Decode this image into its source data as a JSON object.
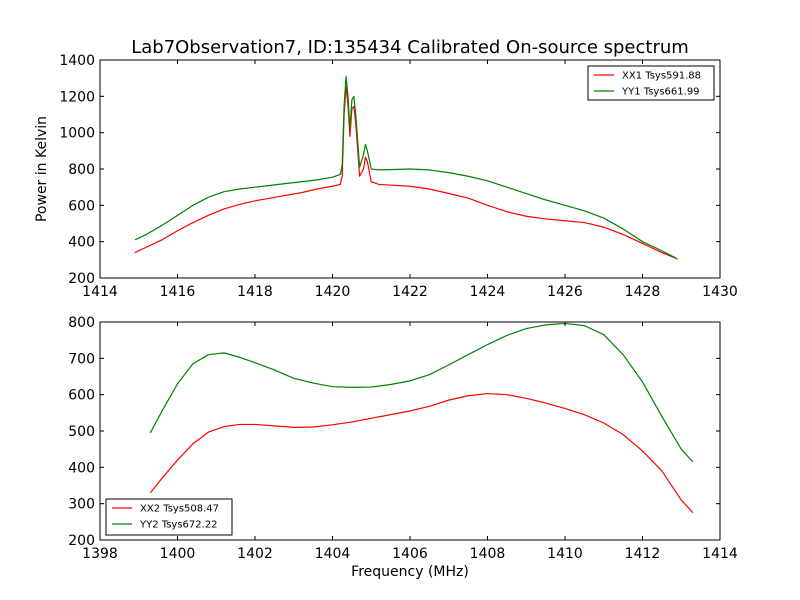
{
  "chart_data": [
    {
      "type": "line",
      "title": "Lab7Observation7, ID:135434 Calibrated On-source spectrum",
      "xlabel": "",
      "ylabel": "Power in Kelvin",
      "xlim": [
        1414,
        1430
      ],
      "ylim": [
        200,
        1400
      ],
      "xticks": [
        "1414",
        "1416",
        "1418",
        "1420",
        "1422",
        "1424",
        "1426",
        "1428",
        "1430"
      ],
      "yticks": [
        "200",
        "400",
        "600",
        "800",
        "1000",
        "1200",
        "1400"
      ],
      "legend_position": "top-right",
      "grid": false,
      "series": [
        {
          "name": "XX1 Tsys591.88",
          "color": "#ff0000",
          "points": [
            [
              1414.9,
              340
            ],
            [
              1415.2,
              370
            ],
            [
              1415.6,
              410
            ],
            [
              1416.0,
              460
            ],
            [
              1416.4,
              505
            ],
            [
              1416.8,
              545
            ],
            [
              1417.2,
              580
            ],
            [
              1417.6,
              605
            ],
            [
              1418.0,
              625
            ],
            [
              1418.4,
              640
            ],
            [
              1418.8,
              655
            ],
            [
              1419.2,
              670
            ],
            [
              1419.6,
              690
            ],
            [
              1420.0,
              705
            ],
            [
              1420.2,
              715
            ],
            [
              1420.25,
              760
            ],
            [
              1420.3,
              1100
            ],
            [
              1420.35,
              1255
            ],
            [
              1420.4,
              1150
            ],
            [
              1420.45,
              980
            ],
            [
              1420.5,
              1130
            ],
            [
              1420.55,
              1145
            ],
            [
              1420.6,
              1050
            ],
            [
              1420.7,
              760
            ],
            [
              1420.8,
              800
            ],
            [
              1420.85,
              865
            ],
            [
              1420.9,
              840
            ],
            [
              1421.0,
              730
            ],
            [
              1421.2,
              715
            ],
            [
              1422.0,
              705
            ],
            [
              1422.5,
              690
            ],
            [
              1423.0,
              665
            ],
            [
              1423.5,
              640
            ],
            [
              1424.0,
              600
            ],
            [
              1424.5,
              565
            ],
            [
              1425.0,
              540
            ],
            [
              1425.5,
              525
            ],
            [
              1426.0,
              515
            ],
            [
              1426.5,
              505
            ],
            [
              1427.0,
              480
            ],
            [
              1427.5,
              440
            ],
            [
              1428.0,
              390
            ],
            [
              1428.5,
              340
            ],
            [
              1428.9,
              305
            ]
          ]
        },
        {
          "name": "YY1 Tsys661.99",
          "color": "#008000",
          "points": [
            [
              1414.9,
              410
            ],
            [
              1415.2,
              440
            ],
            [
              1415.6,
              490
            ],
            [
              1416.0,
              545
            ],
            [
              1416.4,
              600
            ],
            [
              1416.8,
              645
            ],
            [
              1417.2,
              675
            ],
            [
              1417.6,
              690
            ],
            [
              1418.0,
              700
            ],
            [
              1418.4,
              710
            ],
            [
              1418.8,
              720
            ],
            [
              1419.2,
              730
            ],
            [
              1419.6,
              740
            ],
            [
              1420.0,
              755
            ],
            [
              1420.2,
              770
            ],
            [
              1420.25,
              820
            ],
            [
              1420.3,
              1150
            ],
            [
              1420.35,
              1310
            ],
            [
              1420.4,
              1200
            ],
            [
              1420.45,
              1020
            ],
            [
              1420.5,
              1180
            ],
            [
              1420.55,
              1200
            ],
            [
              1420.6,
              1100
            ],
            [
              1420.7,
              810
            ],
            [
              1420.8,
              880
            ],
            [
              1420.85,
              935
            ],
            [
              1420.9,
              900
            ],
            [
              1421.0,
              800
            ],
            [
              1421.2,
              795
            ],
            [
              1422.0,
              800
            ],
            [
              1422.5,
              795
            ],
            [
              1423.0,
              780
            ],
            [
              1423.5,
              760
            ],
            [
              1424.0,
              735
            ],
            [
              1424.5,
              700
            ],
            [
              1425.0,
              665
            ],
            [
              1425.5,
              630
            ],
            [
              1426.0,
              600
            ],
            [
              1426.5,
              570
            ],
            [
              1427.0,
              530
            ],
            [
              1427.5,
              470
            ],
            [
              1428.0,
              400
            ],
            [
              1428.5,
              350
            ],
            [
              1428.9,
              305
            ]
          ]
        }
      ]
    },
    {
      "type": "line",
      "title": "",
      "xlabel": "Frequency (MHz)",
      "ylabel": "",
      "xlim": [
        1398,
        1414
      ],
      "ylim": [
        200,
        800
      ],
      "xticks": [
        "1398",
        "1400",
        "1402",
        "1404",
        "1406",
        "1408",
        "1410",
        "1412",
        "1414"
      ],
      "yticks": [
        "200",
        "300",
        "400",
        "500",
        "600",
        "700",
        "800"
      ],
      "legend_position": "bottom-left",
      "grid": false,
      "series": [
        {
          "name": "XX2 Tsys508.47",
          "color": "#ff0000",
          "points": [
            [
              1399.3,
              330
            ],
            [
              1399.6,
              370
            ],
            [
              1400.0,
              420
            ],
            [
              1400.4,
              465
            ],
            [
              1400.8,
              497
            ],
            [
              1401.2,
              512
            ],
            [
              1401.6,
              518
            ],
            [
              1402.0,
              518
            ],
            [
              1402.5,
              514
            ],
            [
              1403.0,
              510
            ],
            [
              1403.5,
              511
            ],
            [
              1404.0,
              517
            ],
            [
              1404.5,
              525
            ],
            [
              1405.0,
              535
            ],
            [
              1405.5,
              545
            ],
            [
              1406.0,
              555
            ],
            [
              1406.5,
              568
            ],
            [
              1407.0,
              585
            ],
            [
              1407.5,
              597
            ],
            [
              1408.0,
              603
            ],
            [
              1408.5,
              600
            ],
            [
              1409.0,
              590
            ],
            [
              1409.5,
              577
            ],
            [
              1410.0,
              562
            ],
            [
              1410.5,
              545
            ],
            [
              1411.0,
              522
            ],
            [
              1411.5,
              490
            ],
            [
              1412.0,
              445
            ],
            [
              1412.5,
              390
            ],
            [
              1413.0,
              310
            ],
            [
              1413.3,
              275
            ]
          ]
        },
        {
          "name": "YY2 Tsys672.22",
          "color": "#008000",
          "points": [
            [
              1399.3,
              495
            ],
            [
              1399.6,
              555
            ],
            [
              1400.0,
              630
            ],
            [
              1400.4,
              685
            ],
            [
              1400.8,
              710
            ],
            [
              1401.2,
              715
            ],
            [
              1401.6,
              703
            ],
            [
              1402.0,
              688
            ],
            [
              1402.5,
              668
            ],
            [
              1403.0,
              645
            ],
            [
              1403.5,
              632
            ],
            [
              1404.0,
              622
            ],
            [
              1404.5,
              620
            ],
            [
              1405.0,
              621
            ],
            [
              1405.5,
              628
            ],
            [
              1406.0,
              638
            ],
            [
              1406.5,
              655
            ],
            [
              1407.0,
              682
            ],
            [
              1407.5,
              710
            ],
            [
              1408.0,
              738
            ],
            [
              1408.5,
              763
            ],
            [
              1409.0,
              782
            ],
            [
              1409.5,
              792
            ],
            [
              1410.0,
              796
            ],
            [
              1410.5,
              790
            ],
            [
              1411.0,
              765
            ],
            [
              1411.5,
              710
            ],
            [
              1412.0,
              635
            ],
            [
              1412.5,
              540
            ],
            [
              1413.0,
              450
            ],
            [
              1413.3,
              415
            ]
          ]
        }
      ]
    }
  ]
}
